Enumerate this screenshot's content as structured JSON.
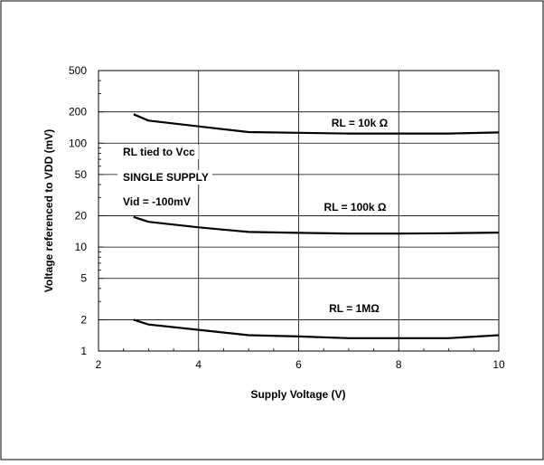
{
  "chart_data": {
    "type": "line",
    "xlabel": "Supply Voltage (V)",
    "ylabel": "Voltage referenced to VDD (mV)",
    "xlim": [
      2,
      10
    ],
    "ylim": [
      1,
      500
    ],
    "y_scale": "log",
    "grid": true,
    "x_ticks": [
      "2",
      "4",
      "6",
      "8",
      "10"
    ],
    "y_ticks": [
      "1",
      "2",
      "5",
      "10",
      "20",
      "50",
      "100",
      "200",
      "500"
    ],
    "conditions": [
      "RL tied to Vcc",
      "SINGLE SUPPLY",
      "Vid = -100mV"
    ],
    "series": [
      {
        "name": "RL = 10k Ω",
        "x": [
          2.7,
          3.0,
          4.0,
          5.0,
          6.0,
          7.0,
          8.0,
          9.0,
          10.0
        ],
        "y": [
          190,
          165,
          145,
          128,
          126,
          124,
          124,
          124,
          127
        ]
      },
      {
        "name": "RL = 100k Ω",
        "x": [
          2.7,
          3.0,
          4.0,
          5.0,
          6.0,
          7.0,
          8.0,
          9.0,
          10.0
        ],
        "y": [
          19.5,
          17.5,
          15.5,
          14,
          13.7,
          13.5,
          13.5,
          13.6,
          13.8
        ]
      },
      {
        "name": "RL = 1MΩ",
        "x": [
          2.7,
          3.0,
          4.0,
          5.0,
          6.0,
          7.0,
          8.0,
          9.0,
          10.0
        ],
        "y": [
          2.0,
          1.8,
          1.6,
          1.42,
          1.38,
          1.33,
          1.33,
          1.33,
          1.42
        ]
      }
    ]
  }
}
